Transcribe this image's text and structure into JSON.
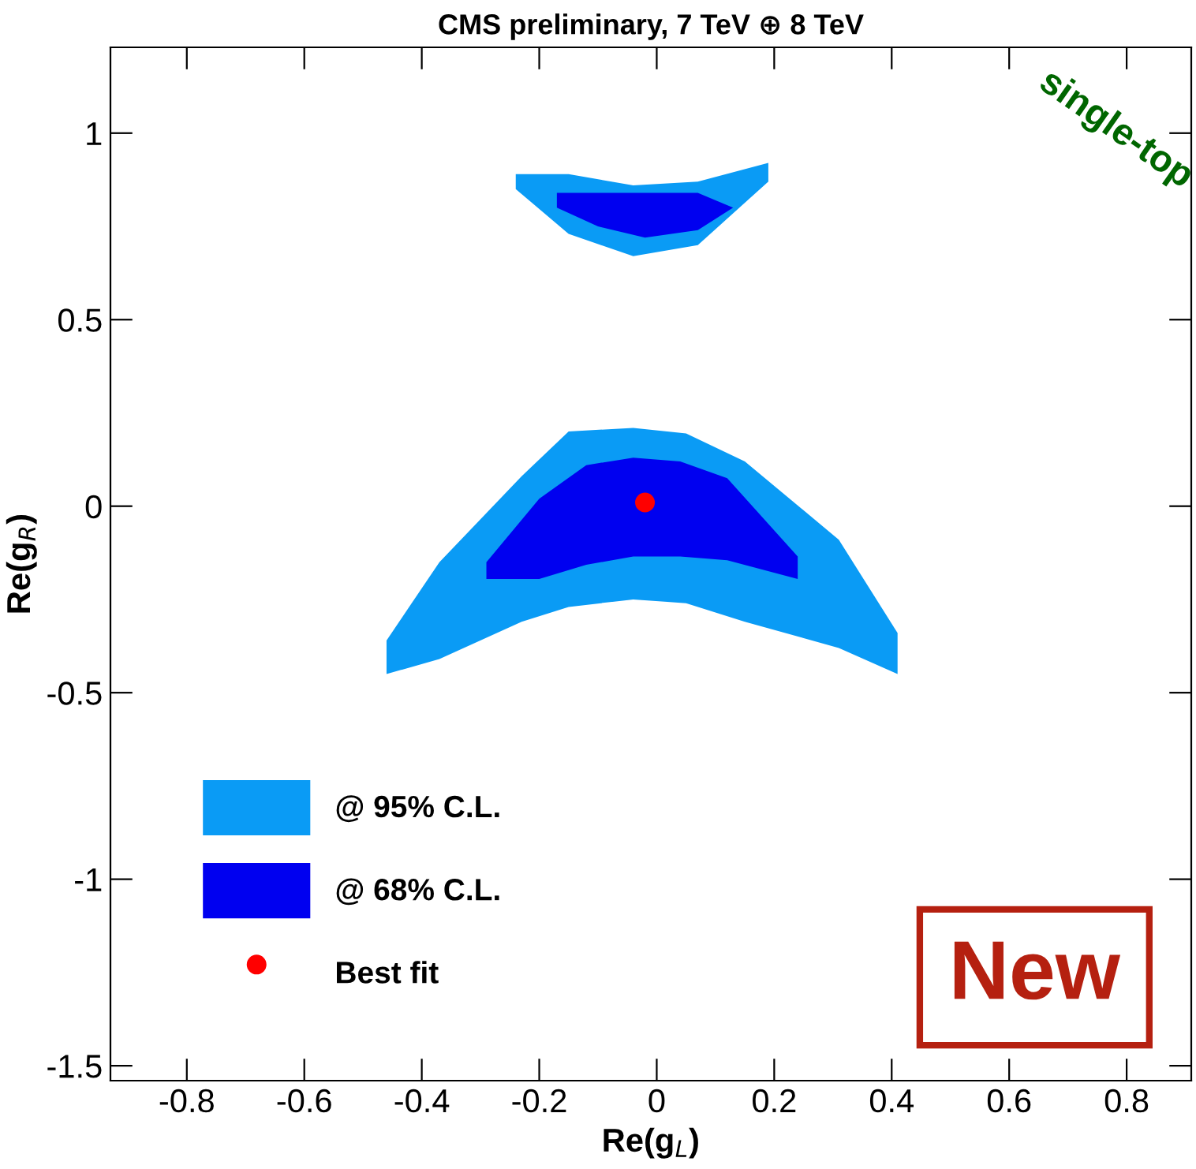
{
  "chart_data": {
    "type": "area",
    "title": "CMS preliminary, 7 TeV ⊕ 8 TeV",
    "xlabel": "Re(g$_{L}$)",
    "ylabel": "Re(g$_{R}$)",
    "xlim": [
      -0.93,
      0.91
    ],
    "ylim": [
      -1.54,
      1.23
    ],
    "xticks": [
      -0.8,
      -0.6,
      -0.4,
      -0.2,
      0,
      0.2,
      0.4,
      0.6,
      0.8
    ],
    "yticks": [
      -1.5,
      -1,
      -0.5,
      0,
      0.5,
      1
    ],
    "grid": false,
    "legend": "bottom left",
    "annotations": [
      "single-top",
      "New"
    ],
    "series": [
      {
        "name": "@ 95% C.L.",
        "type": "area",
        "color": "#0a9bf5",
        "x": [
          -0.46,
          -0.37,
          -0.23,
          -0.15,
          -0.04,
          0.05,
          0.15,
          0.31,
          0.41,
          0.41,
          0.31,
          0.15,
          0.05,
          -0.04,
          -0.15,
          -0.23,
          -0.37,
          -0.46
        ],
        "values": [
          -0.36,
          -0.15,
          0.08,
          0.2,
          0.21,
          0.195,
          0.12,
          -0.09,
          -0.34,
          -0.45,
          -0.38,
          -0.31,
          -0.26,
          -0.25,
          -0.27,
          -0.31,
          -0.41,
          -0.45
        ]
      },
      {
        "type": "area",
        "color": "#0a9bf5",
        "x": [
          -0.24,
          -0.15,
          -0.04,
          0.07,
          0.19,
          0.19,
          0.07,
          -0.04,
          -0.15,
          -0.24
        ],
        "values": [
          0.89,
          0.89,
          0.86,
          0.87,
          0.92,
          0.87,
          0.7,
          0.67,
          0.73,
          0.85
        ]
      },
      {
        "name": "@ 68% C.L.",
        "type": "area",
        "color": "#0000f0",
        "x": [
          -0.29,
          -0.2,
          -0.12,
          -0.04,
          0.04,
          0.12,
          0.24,
          0.24,
          0.12,
          0.04,
          -0.04,
          -0.12,
          -0.2,
          -0.29
        ],
        "values": [
          -0.15,
          0.02,
          0.11,
          0.13,
          0.12,
          0.075,
          -0.135,
          -0.195,
          -0.145,
          -0.135,
          -0.135,
          -0.157,
          -0.195,
          -0.195
        ]
      },
      {
        "type": "area",
        "color": "#0000f0",
        "x": [
          -0.17,
          -0.1,
          -0.02,
          0.07,
          0.13,
          0.07,
          -0.02,
          -0.1,
          -0.17
        ],
        "values": [
          0.84,
          0.84,
          0.84,
          0.84,
          0.8,
          0.74,
          0.72,
          0.75,
          0.8
        ]
      },
      {
        "name": "Best fit",
        "type": "scatter",
        "color": "#ff0000",
        "marker": "circle",
        "x": [
          -0.02
        ],
        "values": [
          0.01
        ]
      }
    ]
  }
}
